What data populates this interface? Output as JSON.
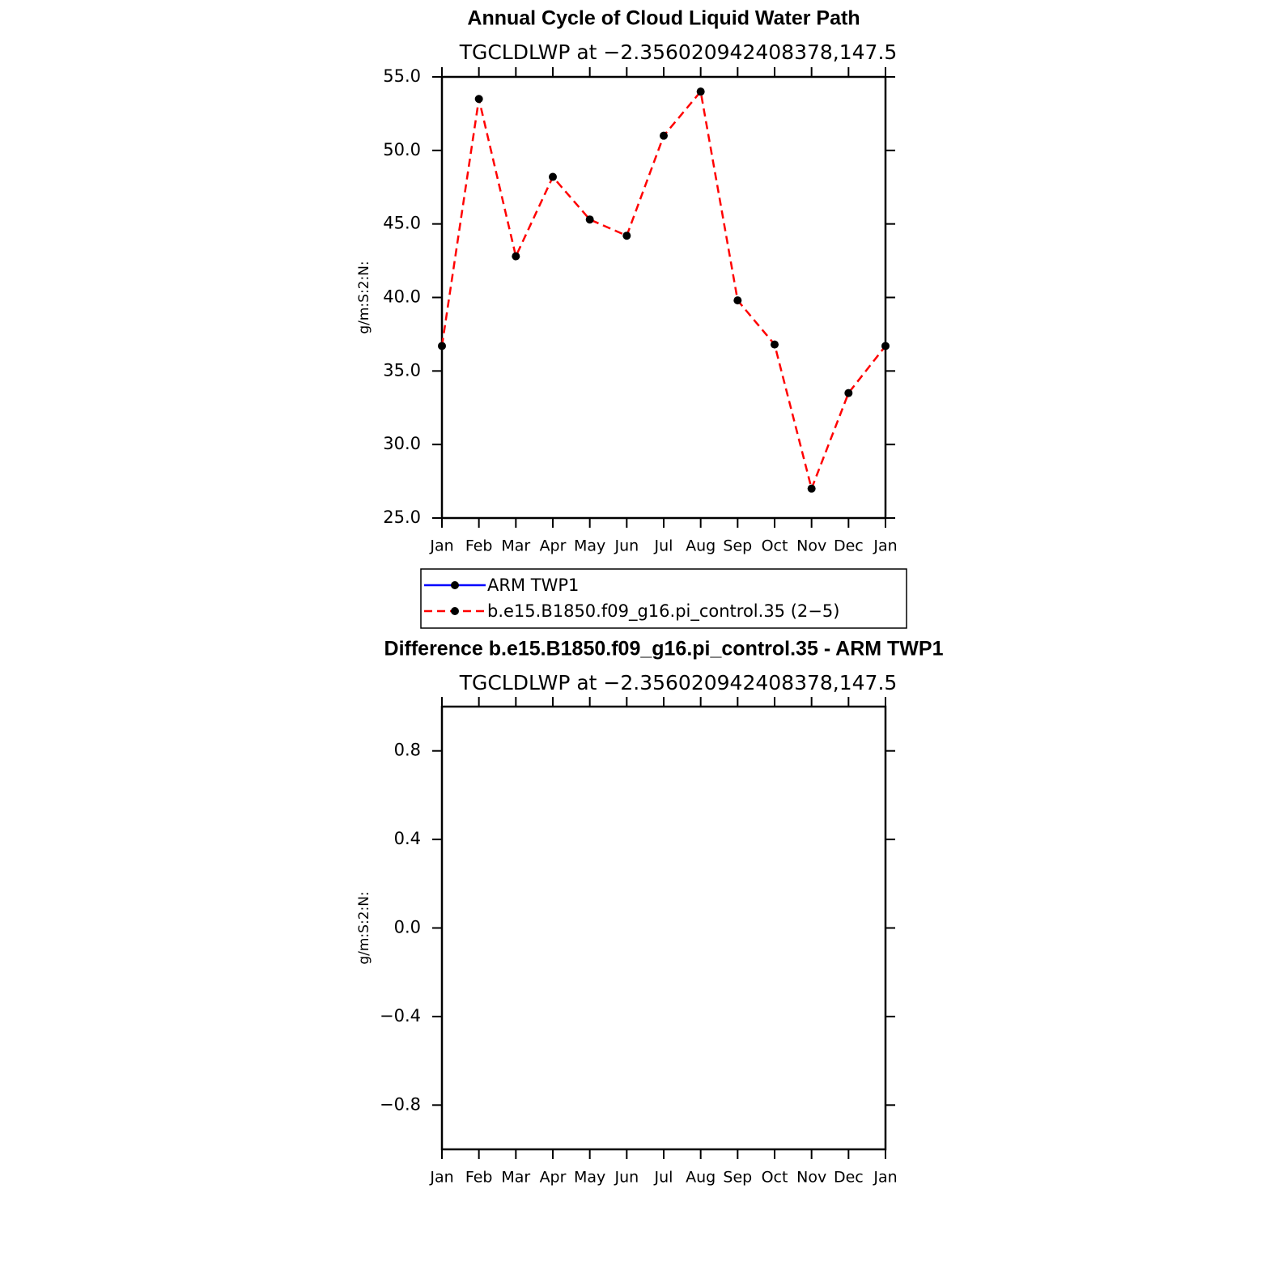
{
  "chart_data": [
    {
      "type": "line",
      "title": "Annual Cycle of Cloud Liquid Water Path",
      "subtitle": "TGCLDLWP at −2.356020942408378,147.5",
      "ylabel": "g/m:S:2:N:",
      "categories": [
        "Jan",
        "Feb",
        "Mar",
        "Apr",
        "May",
        "Jun",
        "Jul",
        "Aug",
        "Sep",
        "Oct",
        "Nov",
        "Dec",
        "Jan"
      ],
      "series": [
        {
          "name": "ARM TWP1",
          "color": "#0000ff",
          "dashed": false,
          "values": [
            null,
            null,
            null,
            null,
            null,
            null,
            null,
            null,
            null,
            null,
            null,
            null,
            null
          ]
        },
        {
          "name": "b.e15.B1850.f09_g16.pi_control.35 (2−5)",
          "color": "#ff0000",
          "dashed": true,
          "values": [
            36.7,
            53.5,
            42.8,
            48.2,
            45.3,
            44.2,
            51.0,
            54.0,
            39.8,
            36.8,
            27.0,
            33.5,
            36.7
          ]
        }
      ],
      "ylim": [
        25,
        55
      ],
      "yticks": [
        {
          "value": 25,
          "label": "25.0"
        },
        {
          "value": 30,
          "label": "30.0"
        },
        {
          "value": 35,
          "label": "35.0"
        },
        {
          "value": 40,
          "label": "40.0"
        },
        {
          "value": 45,
          "label": "45.0"
        },
        {
          "value": 50,
          "label": "50.0"
        },
        {
          "value": 55,
          "label": "55.0"
        }
      ]
    },
    {
      "type": "line",
      "title": "Difference b.e15.B1850.f09_g16.pi_control.35 - ARM TWP1",
      "subtitle": "TGCLDLWP at −2.356020942408378,147.5",
      "ylabel": "g/m:S:2:N:",
      "categories": [
        "Jan",
        "Feb",
        "Mar",
        "Apr",
        "May",
        "Jun",
        "Jul",
        "Aug",
        "Sep",
        "Oct",
        "Nov",
        "Dec",
        "Jan"
      ],
      "series": [],
      "ylim": [
        -1,
        1
      ],
      "yticks": [
        {
          "value": -0.8,
          "label": "−0.8"
        },
        {
          "value": -0.4,
          "label": "−0.4"
        },
        {
          "value": 0,
          "label": "0.0"
        },
        0.4,
        0.8
      ]
    }
  ]
}
